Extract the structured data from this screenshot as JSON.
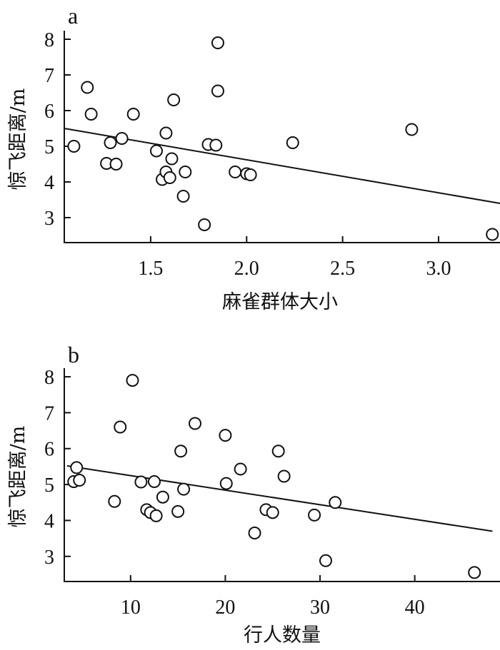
{
  "chart_data": [
    {
      "type": "scatter",
      "panel_label": "a",
      "xlabel": "麻雀群体大小",
      "ylabel": "惊飞距离/m",
      "xlim": [
        1.05,
        3.32
      ],
      "ylim": [
        2.3,
        8.2
      ],
      "xticks": [
        1.5,
        2.0,
        2.5,
        3.0
      ],
      "xtick_labels": [
        "1.5",
        "2.0",
        "2.5",
        "3.0"
      ],
      "yticks": [
        3,
        4,
        5,
        6,
        7,
        8
      ],
      "ytick_labels": [
        "3",
        "4",
        "5",
        "6",
        "7",
        "8"
      ],
      "grid": false,
      "points": [
        {
          "x": 1.1,
          "y": 5.0
        },
        {
          "x": 1.17,
          "y": 6.65
        },
        {
          "x": 1.19,
          "y": 5.9
        },
        {
          "x": 1.27,
          "y": 4.52
        },
        {
          "x": 1.29,
          "y": 5.1
        },
        {
          "x": 1.32,
          "y": 4.5
        },
        {
          "x": 1.35,
          "y": 5.22
        },
        {
          "x": 1.41,
          "y": 5.9
        },
        {
          "x": 1.53,
          "y": 4.87
        },
        {
          "x": 1.56,
          "y": 4.07
        },
        {
          "x": 1.58,
          "y": 4.28
        },
        {
          "x": 1.58,
          "y": 5.37
        },
        {
          "x": 1.6,
          "y": 4.12
        },
        {
          "x": 1.61,
          "y": 4.65
        },
        {
          "x": 1.62,
          "y": 6.3
        },
        {
          "x": 1.67,
          "y": 3.6
        },
        {
          "x": 1.68,
          "y": 4.28
        },
        {
          "x": 1.78,
          "y": 2.8
        },
        {
          "x": 1.8,
          "y": 5.05
        },
        {
          "x": 1.84,
          "y": 5.03
        },
        {
          "x": 1.85,
          "y": 6.55
        },
        {
          "x": 1.85,
          "y": 7.9
        },
        {
          "x": 1.94,
          "y": 4.28
        },
        {
          "x": 2.0,
          "y": 4.23
        },
        {
          "x": 2.02,
          "y": 4.2
        },
        {
          "x": 2.24,
          "y": 5.1
        },
        {
          "x": 2.86,
          "y": 5.47
        },
        {
          "x": 3.28,
          "y": 2.53
        }
      ],
      "fit_line": {
        "x": [
          1.05,
          3.32
        ],
        "y": [
          5.5,
          3.4
        ]
      }
    },
    {
      "type": "scatter",
      "panel_label": "b",
      "xlabel": "行人数量",
      "ylabel": "惊飞距离/m",
      "xlim": [
        3,
        49
      ],
      "ylim": [
        2.3,
        8.2
      ],
      "xticks": [
        10,
        20,
        30,
        40
      ],
      "xtick_labels": [
        "10",
        "20",
        "30",
        "40"
      ],
      "yticks": [
        3,
        4,
        5,
        6,
        7,
        8
      ],
      "ytick_labels": [
        "3",
        "4",
        "5",
        "6",
        "7",
        "8"
      ],
      "grid": false,
      "points": [
        {
          "x": 4.0,
          "y": 5.08
        },
        {
          "x": 4.3,
          "y": 5.47
        },
        {
          "x": 4.6,
          "y": 5.12
        },
        {
          "x": 8.3,
          "y": 4.53
        },
        {
          "x": 8.9,
          "y": 6.6
        },
        {
          "x": 10.2,
          "y": 7.9
        },
        {
          "x": 11.1,
          "y": 5.07
        },
        {
          "x": 11.7,
          "y": 4.3
        },
        {
          "x": 12.1,
          "y": 4.22
        },
        {
          "x": 12.5,
          "y": 5.08
        },
        {
          "x": 12.7,
          "y": 4.13
        },
        {
          "x": 13.4,
          "y": 4.65
        },
        {
          "x": 15.0,
          "y": 4.25
        },
        {
          "x": 15.3,
          "y": 5.93
        },
        {
          "x": 15.6,
          "y": 4.87
        },
        {
          "x": 16.8,
          "y": 6.7
        },
        {
          "x": 20.0,
          "y": 6.37
        },
        {
          "x": 20.1,
          "y": 5.03
        },
        {
          "x": 21.6,
          "y": 5.43
        },
        {
          "x": 23.1,
          "y": 3.65
        },
        {
          "x": 24.3,
          "y": 4.3
        },
        {
          "x": 25.0,
          "y": 4.22
        },
        {
          "x": 25.6,
          "y": 5.93
        },
        {
          "x": 26.2,
          "y": 5.23
        },
        {
          "x": 29.4,
          "y": 4.15
        },
        {
          "x": 30.6,
          "y": 2.88
        },
        {
          "x": 31.6,
          "y": 4.5
        },
        {
          "x": 46.3,
          "y": 2.55
        }
      ],
      "fit_line": {
        "x": [
          3.3,
          48.2
        ],
        "y": [
          5.52,
          3.7
        ]
      }
    }
  ]
}
